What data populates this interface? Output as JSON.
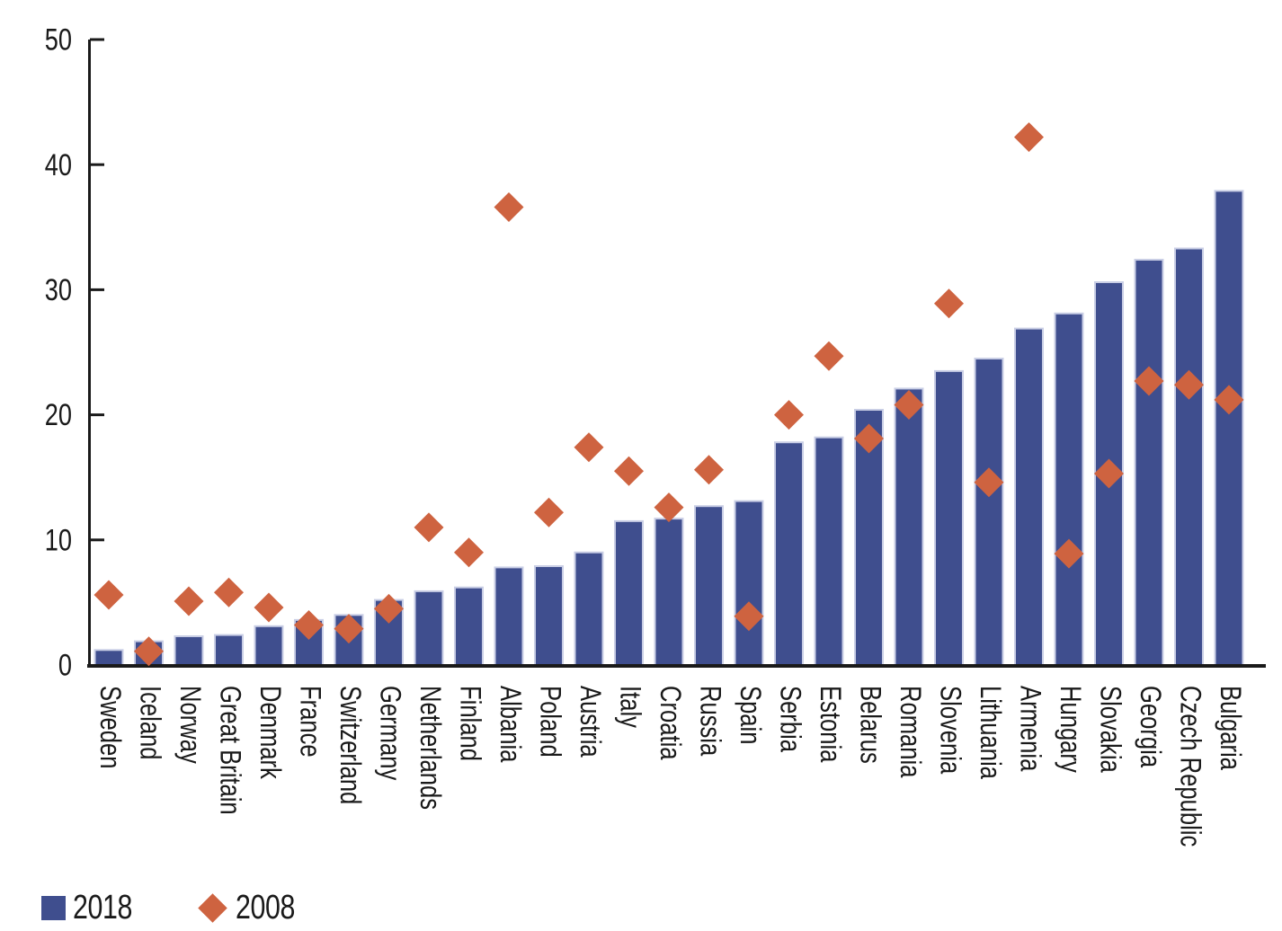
{
  "colors": {
    "bar_2018": "#3F4E8E",
    "bar_outline": "#C9CEE5",
    "diamond_2008": "#CE6340",
    "axis": "#1A1A1A",
    "background": "#FFFFFF"
  },
  "legend": {
    "items": [
      {
        "label": "2018",
        "swatch": "square"
      },
      {
        "label": "2008",
        "swatch": "diamond"
      }
    ]
  },
  "chart_data": {
    "type": "bar",
    "title": "",
    "xlabel": "",
    "ylabel": "",
    "ylim": [
      0,
      50
    ],
    "yticks": [
      0,
      10,
      20,
      30,
      40,
      50
    ],
    "grid": false,
    "legend_position": "bottom-left",
    "categories": [
      "Sweden",
      "Iceland",
      "Norway",
      "Great Britain",
      "Denmark",
      "France",
      "Switzerland",
      "Germany",
      "Netherlands",
      "Finland",
      "Albania",
      "Poland",
      "Austria",
      "Italy",
      "Croatia",
      "Russia",
      "Spain",
      "Serbia",
      "Estonia",
      "Belarus",
      "Romania",
      "Slovenia",
      "Lithuania",
      "Armenia",
      "Hungary",
      "Slovakia",
      "Georgia",
      "Czech Republic",
      "Bulgaria"
    ],
    "series": [
      {
        "name": "2018",
        "type": "bar",
        "values": [
          1.2,
          1.9,
          2.3,
          2.4,
          3.1,
          3.6,
          4.0,
          5.2,
          5.9,
          6.2,
          7.8,
          7.9,
          9.0,
          11.5,
          11.7,
          12.7,
          13.1,
          17.8,
          18.2,
          20.4,
          22.1,
          23.5,
          24.5,
          26.9,
          28.1,
          30.6,
          32.4,
          33.3,
          37.9
        ]
      },
      {
        "name": "2008",
        "type": "scatter-diamond",
        "values": [
          5.6,
          1.1,
          5.1,
          5.8,
          4.6,
          3.2,
          2.9,
          4.5,
          11.0,
          9.0,
          36.6,
          12.2,
          17.4,
          15.5,
          12.6,
          15.6,
          3.9,
          20.0,
          24.7,
          18.1,
          20.8,
          28.9,
          14.6,
          42.2,
          8.9,
          15.3,
          22.7,
          22.4,
          21.2
        ]
      }
    ]
  }
}
